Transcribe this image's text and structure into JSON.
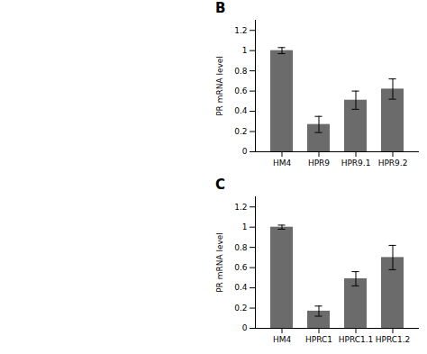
{
  "chart_data": [
    {
      "type": "bar",
      "title": "B",
      "categories": [
        "HM4",
        "HPR9",
        "HPR9.1",
        "HPR9.2"
      ],
      "values": [
        1.0,
        0.27,
        0.51,
        0.62
      ],
      "errors": [
        0.03,
        0.08,
        0.09,
        0.1
      ],
      "ylabel": "PR mRNA level",
      "ylim": [
        0,
        1.3
      ],
      "yticks": [
        0,
        0.2,
        0.4,
        0.6,
        0.8,
        1.0,
        1.2
      ],
      "color": "#6b6b6b"
    },
    {
      "type": "bar",
      "title": "C",
      "categories": [
        "HM4",
        "HPRC1",
        "HPRC1.1",
        "HPRC1.2"
      ],
      "values": [
        1.0,
        0.17,
        0.49,
        0.7
      ],
      "errors": [
        0.02,
        0.05,
        0.07,
        0.12
      ],
      "ylabel": "PR mRNA level",
      "ylim": [
        0,
        1.3
      ],
      "yticks": [
        0,
        0.2,
        0.4,
        0.6,
        0.8,
        1.0,
        1.2
      ],
      "color": "#6b6b6b"
    }
  ]
}
